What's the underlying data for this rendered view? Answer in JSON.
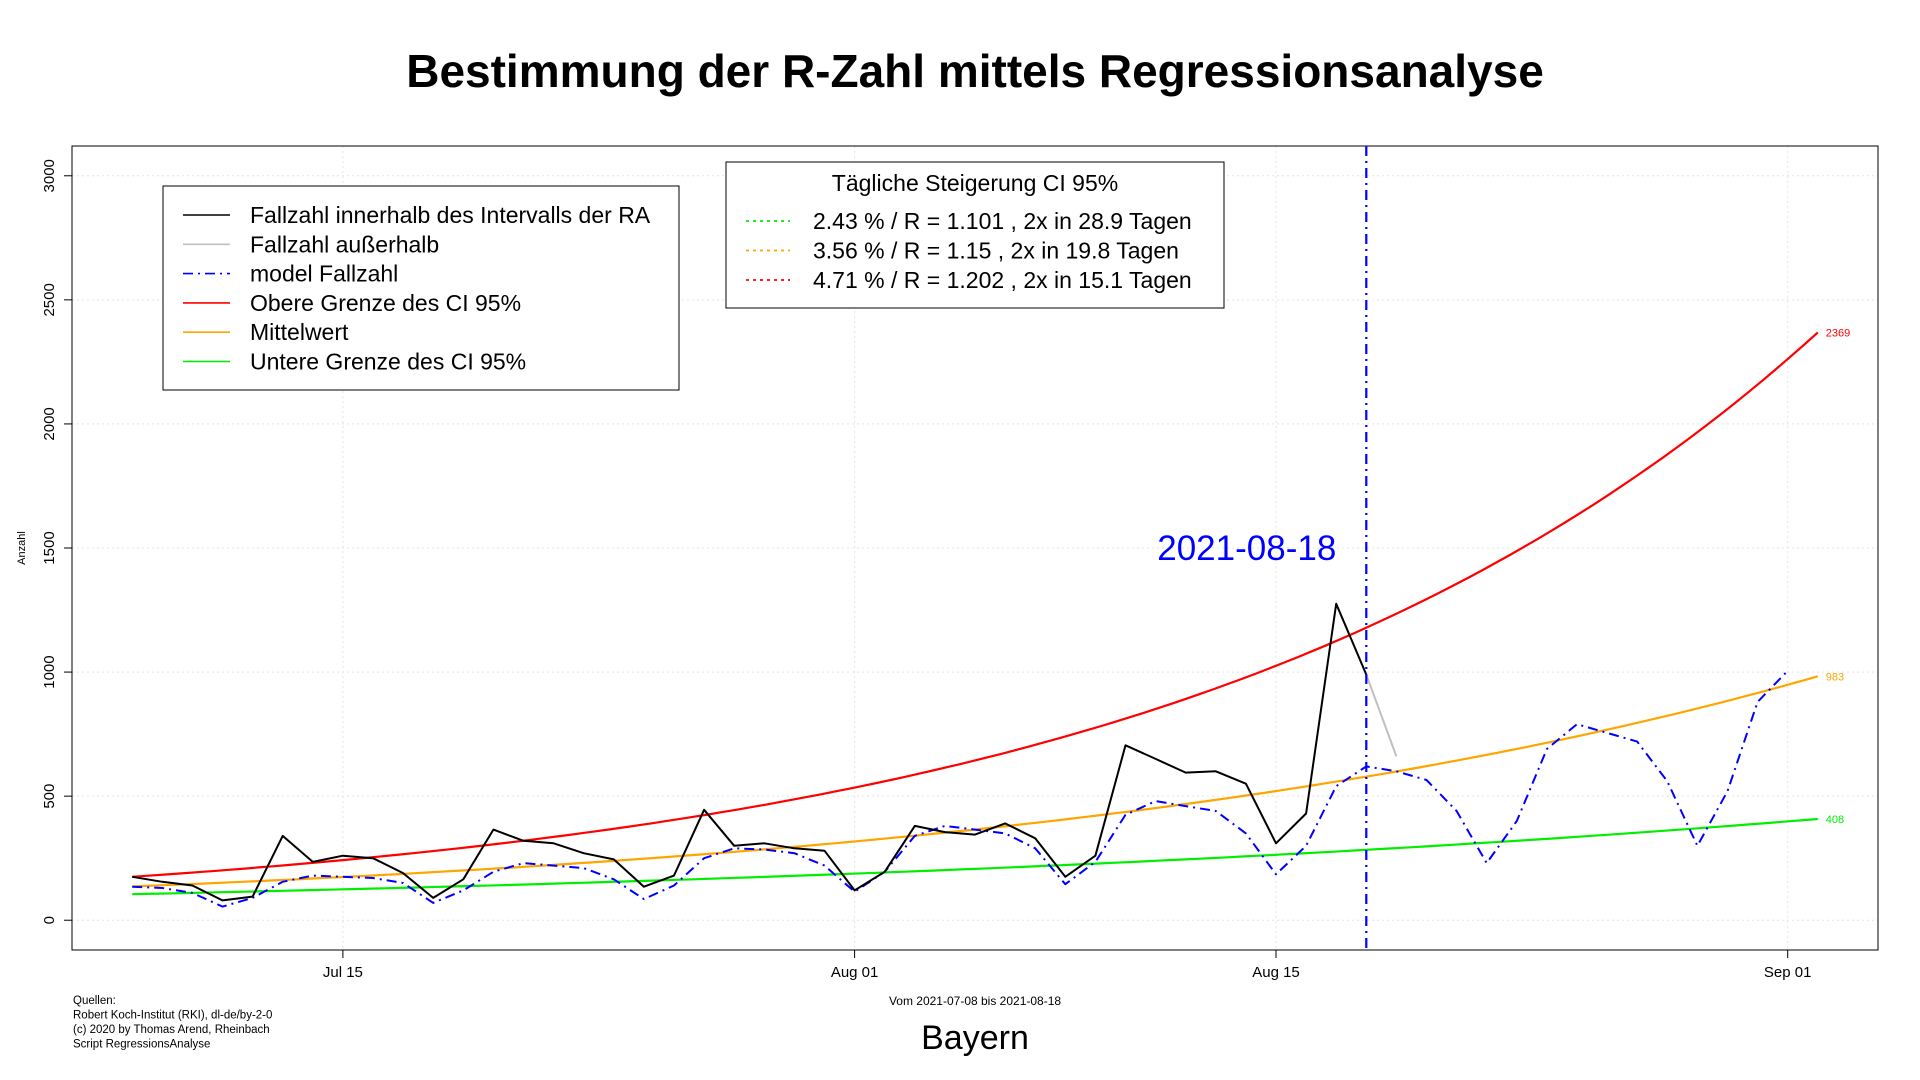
{
  "chart_data": {
    "type": "line",
    "title": "Bestimmung der R-Zahl mittels Regressionsanalyse",
    "ylabel": "Anzahl",
    "xlabel": "Bayern",
    "subtitle": "Vom 2021-07-08 bis 2021-08-18",
    "ylim": [
      -120,
      3120
    ],
    "y_ticks": [
      0,
      500,
      1000,
      1500,
      2000,
      2500,
      3000
    ],
    "x_ticks": [
      {
        "date": "2021-07-15",
        "label": "Jul 15"
      },
      {
        "date": "2021-08-01",
        "label": "Aug 01"
      },
      {
        "date": "2021-08-15",
        "label": "Aug 15"
      },
      {
        "date": "2021-09-01",
        "label": "Sep 01"
      }
    ],
    "x_range": [
      "2021-07-06",
      "2021-09-04"
    ],
    "grid": true,
    "vline": {
      "date": "2021-08-18",
      "label": "2021-08-18",
      "color": "#0000ff"
    },
    "series": [
      {
        "name": "Fallzahl innerhalb des Intervalls der RA",
        "color": "#000000",
        "style": "solid",
        "points": [
          [
            "2021-07-08",
            175
          ],
          [
            "2021-07-09",
            155
          ],
          [
            "2021-07-10",
            140
          ],
          [
            "2021-07-11",
            80
          ],
          [
            "2021-07-12",
            95
          ],
          [
            "2021-07-13",
            340
          ],
          [
            "2021-07-14",
            235
          ],
          [
            "2021-07-15",
            260
          ],
          [
            "2021-07-16",
            250
          ],
          [
            "2021-07-17",
            190
          ],
          [
            "2021-07-18",
            90
          ],
          [
            "2021-07-19",
            165
          ],
          [
            "2021-07-20",
            365
          ],
          [
            "2021-07-21",
            320
          ],
          [
            "2021-07-22",
            310
          ],
          [
            "2021-07-23",
            270
          ],
          [
            "2021-07-24",
            245
          ],
          [
            "2021-07-25",
            135
          ],
          [
            "2021-07-26",
            180
          ],
          [
            "2021-07-27",
            445
          ],
          [
            "2021-07-28",
            300
          ],
          [
            "2021-07-29",
            310
          ],
          [
            "2021-07-30",
            290
          ],
          [
            "2021-07-31",
            280
          ],
          [
            "2021-08-01",
            120
          ],
          [
            "2021-08-02",
            195
          ],
          [
            "2021-08-03",
            380
          ],
          [
            "2021-08-04",
            355
          ],
          [
            "2021-08-05",
            345
          ],
          [
            "2021-08-06",
            390
          ],
          [
            "2021-08-07",
            330
          ],
          [
            "2021-08-08",
            175
          ],
          [
            "2021-08-09",
            260
          ],
          [
            "2021-08-10",
            705
          ],
          [
            "2021-08-11",
            650
          ],
          [
            "2021-08-12",
            595
          ],
          [
            "2021-08-13",
            600
          ],
          [
            "2021-08-14",
            550
          ],
          [
            "2021-08-15",
            310
          ],
          [
            "2021-08-16",
            430
          ],
          [
            "2021-08-17",
            1275
          ],
          [
            "2021-08-18",
            990
          ]
        ]
      },
      {
        "name": "Fallzahl außerhalb",
        "color": "#c0c0c0",
        "style": "solid",
        "points": [
          [
            "2021-08-18",
            990
          ],
          [
            "2021-08-19",
            660
          ]
        ]
      },
      {
        "name": "model Fallzahl",
        "color": "#0000ff",
        "style": "dashdot",
        "points": [
          [
            "2021-07-08",
            135
          ],
          [
            "2021-07-09",
            130
          ],
          [
            "2021-07-10",
            110
          ],
          [
            "2021-07-11",
            55
          ],
          [
            "2021-07-12",
            90
          ],
          [
            "2021-07-13",
            155
          ],
          [
            "2021-07-14",
            180
          ],
          [
            "2021-07-15",
            175
          ],
          [
            "2021-07-16",
            170
          ],
          [
            "2021-07-17",
            150
          ],
          [
            "2021-07-18",
            70
          ],
          [
            "2021-07-19",
            120
          ],
          [
            "2021-07-20",
            195
          ],
          [
            "2021-07-21",
            230
          ],
          [
            "2021-07-22",
            220
          ],
          [
            "2021-07-23",
            210
          ],
          [
            "2021-07-24",
            165
          ],
          [
            "2021-07-25",
            85
          ],
          [
            "2021-07-26",
            140
          ],
          [
            "2021-07-27",
            250
          ],
          [
            "2021-07-28",
            290
          ],
          [
            "2021-07-29",
            285
          ],
          [
            "2021-07-30",
            270
          ],
          [
            "2021-07-31",
            220
          ],
          [
            "2021-08-01",
            115
          ],
          [
            "2021-08-02",
            195
          ],
          [
            "2021-08-03",
            340
          ],
          [
            "2021-08-04",
            380
          ],
          [
            "2021-08-05",
            365
          ],
          [
            "2021-08-06",
            350
          ],
          [
            "2021-08-07",
            290
          ],
          [
            "2021-08-08",
            145
          ],
          [
            "2021-08-09",
            235
          ],
          [
            "2021-08-10",
            425
          ],
          [
            "2021-08-11",
            480
          ],
          [
            "2021-08-12",
            460
          ],
          [
            "2021-08-13",
            440
          ],
          [
            "2021-08-14",
            350
          ],
          [
            "2021-08-15",
            185
          ],
          [
            "2021-08-16",
            300
          ],
          [
            "2021-08-17",
            540
          ],
          [
            "2021-08-18",
            620
          ],
          [
            "2021-08-19",
            600
          ],
          [
            "2021-08-20",
            565
          ],
          [
            "2021-08-21",
            440
          ],
          [
            "2021-08-22",
            230
          ],
          [
            "2021-08-23",
            400
          ],
          [
            "2021-08-24",
            690
          ],
          [
            "2021-08-25",
            790
          ],
          [
            "2021-08-26",
            755
          ],
          [
            "2021-08-27",
            720
          ],
          [
            "2021-08-28",
            560
          ],
          [
            "2021-08-29",
            300
          ],
          [
            "2021-08-30",
            520
          ],
          [
            "2021-08-31",
            880
          ],
          [
            "2021-09-01",
            1005
          ]
        ]
      },
      {
        "name": "Obere Grenze des CI 95%",
        "color": "#ff0000",
        "style": "solid",
        "start": [
          "2021-07-08",
          175
        ],
        "end": [
          "2021-09-02",
          2369
        ]
      },
      {
        "name": "Mittelwert",
        "color": "#ffa500",
        "style": "solid",
        "start": [
          "2021-07-08",
          136
        ],
        "end": [
          "2021-09-02",
          983
        ]
      },
      {
        "name": "Untere Grenze des CI 95%",
        "color": "#00ee00",
        "style": "solid",
        "start": [
          "2021-07-08",
          105
        ],
        "end": [
          "2021-09-02",
          408
        ]
      }
    ],
    "end_labels": [
      {
        "text": "2369",
        "value": 2369,
        "color": "#ff0000"
      },
      {
        "text": "983",
        "value": 983,
        "color": "#ffa500"
      },
      {
        "text": "408",
        "value": 408,
        "color": "#00ee00"
      }
    ],
    "legend": {
      "placement": "top-left",
      "items": [
        {
          "label": "Fallzahl innerhalb des Intervalls der RA",
          "color": "#000000",
          "style": "solid"
        },
        {
          "label": "Fallzahl außerhalb",
          "color": "#c0c0c0",
          "style": "solid"
        },
        {
          "label": "model Fallzahl",
          "color": "#0000ff",
          "style": "dashdot"
        },
        {
          "label": "Obere Grenze des CI 95%",
          "color": "#ff0000",
          "style": "solid"
        },
        {
          "label": "Mittelwert",
          "color": "#ffa500",
          "style": "solid"
        },
        {
          "label": "Untere Grenze des CI 95%",
          "color": "#00ee00",
          "style": "solid"
        }
      ]
    },
    "ci_legend": {
      "placement": "top-center",
      "title": "Tägliche Steigerung CI  95%",
      "items": [
        {
          "label": "2.43 % / R = 1.101 , 2x in 28.9 Tagen",
          "color": "#00ee00",
          "style": "dotted"
        },
        {
          "label": "3.56 % / R = 1.15 , 2x in 19.8 Tagen",
          "color": "#ffa500",
          "style": "dotted"
        },
        {
          "label": "4.71 % / R = 1.202 , 2x in 15.1 Tagen",
          "color": "#ff0000",
          "style": "dotted"
        }
      ]
    },
    "sources": [
      "Quellen:",
      "Robert Koch-Institut (RKI), dl-de/by-2-0",
      "(c) 2020 by Thomas Arend, Rheinbach",
      "Script RegressionsAnalyse"
    ]
  }
}
